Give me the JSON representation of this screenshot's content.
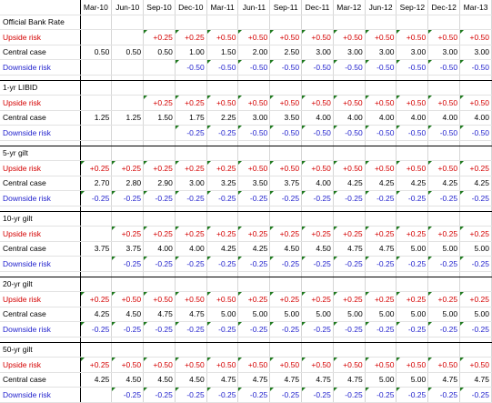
{
  "columns": [
    "Mar-10",
    "Jun-10",
    "Sep-10",
    "Dec-10",
    "Mar-11",
    "Jun-11",
    "Sep-11",
    "Dec-11",
    "Mar-12",
    "Jun-12",
    "Sep-12",
    "Dec-12",
    "Mar-13"
  ],
  "colors": {
    "upside": "#d40000",
    "central": "#000000",
    "downside": "#1f1fcc",
    "comment_marker": "#1f7a1f"
  },
  "sections": [
    {
      "title": "Official Bank Rate",
      "rows": [
        {
          "label": "Upside risk",
          "kind": "up",
          "values": [
            "",
            "",
            "+0.25",
            "+0.25",
            "+0.50",
            "+0.50",
            "+0.50",
            "+0.50",
            "+0.50",
            "+0.50",
            "+0.50",
            "+0.50",
            "+0.50"
          ],
          "markers": [
            false,
            false,
            true,
            true,
            true,
            true,
            true,
            true,
            true,
            true,
            true,
            true,
            true
          ]
        },
        {
          "label": "Central case",
          "kind": "central",
          "values": [
            "0.50",
            "0.50",
            "0.50",
            "1.00",
            "1.50",
            "2.00",
            "2.50",
            "3.00",
            "3.00",
            "3.00",
            "3.00",
            "3.00",
            "3.00"
          ],
          "markers": [
            false,
            false,
            false,
            false,
            false,
            false,
            false,
            false,
            false,
            false,
            false,
            false,
            false
          ]
        },
        {
          "label": "Downside risk",
          "kind": "down",
          "values": [
            "",
            "",
            "",
            "-0.50",
            "-0.50",
            "-0.50",
            "-0.50",
            "-0.50",
            "-0.50",
            "-0.50",
            "-0.50",
            "-0.50",
            "-0.50"
          ],
          "markers": [
            false,
            false,
            false,
            true,
            true,
            true,
            true,
            true,
            true,
            true,
            true,
            true,
            true
          ]
        }
      ]
    },
    {
      "title": "1-yr LIBID",
      "rows": [
        {
          "label": "Upside risk",
          "kind": "up",
          "values": [
            "",
            "",
            "+0.25",
            "+0.25",
            "+0.50",
            "+0.50",
            "+0.50",
            "+0.50",
            "+0.50",
            "+0.50",
            "+0.50",
            "+0.50",
            "+0.50"
          ],
          "markers": [
            false,
            false,
            true,
            true,
            true,
            true,
            true,
            true,
            true,
            true,
            true,
            true,
            true
          ]
        },
        {
          "label": "Central case",
          "kind": "central",
          "values": [
            "1.25",
            "1.25",
            "1.50",
            "1.75",
            "2.25",
            "3.00",
            "3.50",
            "4.00",
            "4.00",
            "4.00",
            "4.00",
            "4.00",
            "4.00"
          ],
          "markers": [
            false,
            false,
            false,
            false,
            false,
            false,
            false,
            false,
            false,
            false,
            false,
            false,
            false
          ]
        },
        {
          "label": "Downside risk",
          "kind": "down",
          "values": [
            "",
            "",
            "",
            "-0.25",
            "-0.25",
            "-0.50",
            "-0.50",
            "-0.50",
            "-0.50",
            "-0.50",
            "-0.50",
            "-0.50",
            "-0.50"
          ],
          "markers": [
            false,
            false,
            false,
            true,
            true,
            true,
            true,
            true,
            true,
            true,
            true,
            true,
            true
          ]
        }
      ]
    },
    {
      "title": "5-yr gilt",
      "rows": [
        {
          "label": "Upside risk",
          "kind": "up",
          "values": [
            "+0.25",
            "+0.25",
            "+0.25",
            "+0.25",
            "+0.25",
            "+0.50",
            "+0.50",
            "+0.50",
            "+0.50",
            "+0.50",
            "+0.50",
            "+0.50",
            "+0.25"
          ],
          "markers": [
            true,
            true,
            true,
            true,
            true,
            true,
            true,
            true,
            true,
            true,
            true,
            true,
            true
          ]
        },
        {
          "label": "Central case",
          "kind": "central",
          "values": [
            "2.70",
            "2.80",
            "2.90",
            "3.00",
            "3.25",
            "3.50",
            "3.75",
            "4.00",
            "4.25",
            "4.25",
            "4.25",
            "4.25",
            "4.25"
          ],
          "markers": [
            false,
            false,
            false,
            false,
            false,
            false,
            false,
            false,
            false,
            false,
            false,
            false,
            false
          ]
        },
        {
          "label": "Downside risk",
          "kind": "down",
          "values": [
            "-0.25",
            "-0.25",
            "-0.25",
            "-0.25",
            "-0.25",
            "-0.25",
            "-0.25",
            "-0.25",
            "-0.25",
            "-0.25",
            "-0.25",
            "-0.25",
            "-0.25"
          ],
          "markers": [
            true,
            true,
            true,
            true,
            true,
            true,
            true,
            true,
            true,
            true,
            true,
            true,
            true
          ]
        }
      ]
    },
    {
      "title": "10-yr gilt",
      "rows": [
        {
          "label": "Upside risk",
          "kind": "up",
          "values": [
            "",
            "+0.25",
            "+0.25",
            "+0.25",
            "+0.25",
            "+0.25",
            "+0.25",
            "+0.25",
            "+0.25",
            "+0.25",
            "+0.25",
            "+0.25",
            "+0.25"
          ],
          "markers": [
            false,
            true,
            true,
            true,
            true,
            true,
            true,
            true,
            true,
            true,
            true,
            true,
            true
          ]
        },
        {
          "label": "Central case",
          "kind": "central",
          "values": [
            "3.75",
            "3.75",
            "4.00",
            "4.00",
            "4.25",
            "4.25",
            "4.50",
            "4.50",
            "4.75",
            "4.75",
            "5.00",
            "5.00",
            "5.00"
          ],
          "markers": [
            false,
            false,
            false,
            false,
            false,
            false,
            false,
            false,
            false,
            false,
            false,
            false,
            false
          ]
        },
        {
          "label": "Downside risk",
          "kind": "down",
          "values": [
            "",
            "-0.25",
            "-0.25",
            "-0.25",
            "-0.25",
            "-0.25",
            "-0.25",
            "-0.25",
            "-0.25",
            "-0.25",
            "-0.25",
            "-0.25",
            "-0.25"
          ],
          "markers": [
            false,
            true,
            true,
            true,
            true,
            true,
            true,
            true,
            true,
            true,
            true,
            true,
            true
          ]
        }
      ]
    },
    {
      "title": "20-yr gilt",
      "rows": [
        {
          "label": "Upside risk",
          "kind": "up",
          "values": [
            "+0.25",
            "+0.50",
            "+0.50",
            "+0.50",
            "+0.50",
            "+0.25",
            "+0.25",
            "+0.25",
            "+0.25",
            "+0.25",
            "+0.25",
            "+0.25",
            "+0.25"
          ],
          "markers": [
            true,
            true,
            true,
            true,
            true,
            true,
            true,
            true,
            true,
            true,
            true,
            true,
            true
          ]
        },
        {
          "label": "Central case",
          "kind": "central",
          "values": [
            "4.25",
            "4.50",
            "4.75",
            "4.75",
            "5.00",
            "5.00",
            "5.00",
            "5.00",
            "5.00",
            "5.00",
            "5.00",
            "5.00",
            "5.00"
          ],
          "markers": [
            false,
            false,
            false,
            false,
            false,
            false,
            false,
            false,
            false,
            false,
            false,
            false,
            false
          ]
        },
        {
          "label": "Downside risk",
          "kind": "down",
          "values": [
            "-0.25",
            "-0.25",
            "-0.25",
            "-0.25",
            "-0.25",
            "-0.25",
            "-0.25",
            "-0.25",
            "-0.25",
            "-0.25",
            "-0.25",
            "-0.25",
            "-0.25"
          ],
          "markers": [
            true,
            true,
            true,
            true,
            true,
            true,
            true,
            true,
            true,
            true,
            true,
            true,
            true
          ]
        }
      ]
    },
    {
      "title": "50-yr gilt",
      "rows": [
        {
          "label": "Upside risk",
          "kind": "up",
          "values": [
            "+0.25",
            "+0.50",
            "+0.50",
            "+0.50",
            "+0.50",
            "+0.50",
            "+0.50",
            "+0.50",
            "+0.50",
            "+0.50",
            "+0.50",
            "+0.50",
            "+0.50"
          ],
          "markers": [
            true,
            true,
            true,
            true,
            true,
            true,
            true,
            true,
            true,
            true,
            true,
            true,
            true
          ]
        },
        {
          "label": "Central case",
          "kind": "central",
          "values": [
            "4.25",
            "4.50",
            "4.50",
            "4.50",
            "4.75",
            "4.75",
            "4.75",
            "4.75",
            "4.75",
            "5.00",
            "5.00",
            "4.75",
            "4.75"
          ],
          "markers": [
            false,
            false,
            false,
            false,
            false,
            false,
            false,
            false,
            false,
            false,
            false,
            false,
            false
          ]
        },
        {
          "label": "Downside risk",
          "kind": "down",
          "values": [
            "",
            "-0.25",
            "-0.25",
            "-0.25",
            "-0.25",
            "-0.25",
            "-0.25",
            "-0.25",
            "-0.25",
            "-0.25",
            "-0.25",
            "-0.25",
            "-0.25"
          ],
          "markers": [
            false,
            true,
            true,
            true,
            true,
            true,
            true,
            true,
            true,
            true,
            true,
            true,
            true
          ]
        }
      ]
    }
  ]
}
